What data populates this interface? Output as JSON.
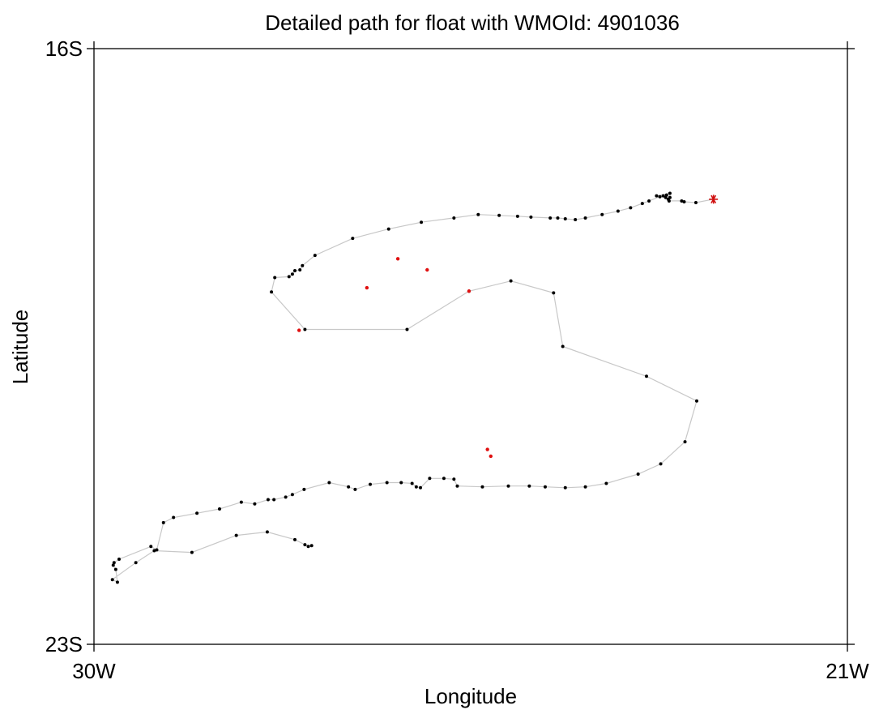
{
  "chart_data": {
    "type": "line",
    "title": "Detailed path for float with WMOId: 4901036",
    "xlabel": "Longitude",
    "ylabel": "Latitude",
    "xlim": [
      -30,
      -21
    ],
    "ylim": [
      -23,
      -16
    ],
    "x_ticks": [
      {
        "value": -30,
        "label": "30W"
      },
      {
        "value": -21,
        "label": "21W"
      }
    ],
    "y_ticks": [
      {
        "value": -16,
        "label": "16S"
      },
      {
        "value": -23,
        "label": "23S"
      }
    ],
    "grid": false,
    "legend": "none",
    "colors": {
      "path": "#c8c8c8",
      "point": "#000000",
      "highlight": "#e01010",
      "start_marker": "#d01010"
    },
    "start_point": {
      "lon": -22.6,
      "lat": -17.77,
      "marker": "asterisk"
    },
    "series": [
      {
        "points": [
          [
            -22.6,
            -17.77
          ],
          [
            -22.81,
            -17.81
          ],
          [
            -22.95,
            -17.8
          ],
          [
            -22.98,
            -17.79
          ],
          [
            -23.13,
            -17.79
          ],
          [
            -23.14,
            -17.77
          ],
          [
            -23.17,
            -17.75
          ],
          [
            -23.28,
            -17.73
          ],
          [
            -23.12,
            -17.7
          ],
          [
            -23.12,
            -17.75
          ],
          [
            -23.16,
            -17.72
          ],
          [
            -23.2,
            -17.73
          ],
          [
            -23.24,
            -17.74
          ],
          [
            -23.37,
            -17.79
          ],
          [
            -23.45,
            -17.82
          ],
          [
            -23.59,
            -17.87
          ],
          [
            -23.74,
            -17.91
          ],
          [
            -23.93,
            -17.95
          ],
          [
            -24.13,
            -17.99
          ],
          [
            -24.25,
            -18.01
          ],
          [
            -24.37,
            -18.0
          ],
          [
            -24.46,
            -17.99
          ],
          [
            -24.55,
            -17.99
          ],
          [
            -24.78,
            -17.98
          ],
          [
            -24.94,
            -17.97
          ],
          [
            -25.16,
            -17.96
          ],
          [
            -25.41,
            -17.95
          ],
          [
            -25.7,
            -17.99
          ],
          [
            -26.09,
            -18.04
          ],
          [
            -26.48,
            -18.12
          ],
          [
            -26.91,
            -18.23
          ],
          [
            -27.36,
            -18.43
          ],
          [
            -27.51,
            -18.55
          ],
          [
            -27.54,
            -18.6
          ],
          [
            -27.6,
            -18.61
          ],
          [
            -27.63,
            -18.65
          ],
          [
            -27.67,
            -18.68
          ],
          [
            -27.84,
            -18.69
          ],
          [
            -27.88,
            -18.86
          ],
          [
            -27.48,
            -19.3
          ],
          [
            -26.26,
            -19.3
          ],
          [
            -25.52,
            -18.85
          ],
          [
            -25.02,
            -18.73
          ],
          [
            -24.51,
            -18.87
          ],
          [
            -24.4,
            -19.5
          ],
          [
            -23.4,
            -19.85
          ],
          [
            -22.8,
            -20.14
          ],
          [
            -22.94,
            -20.62
          ],
          [
            -23.23,
            -20.88
          ],
          [
            -23.5,
            -21.0
          ],
          [
            -23.88,
            -21.11
          ],
          [
            -24.13,
            -21.15
          ],
          [
            -24.37,
            -21.16
          ],
          [
            -24.61,
            -21.15
          ],
          [
            -24.8,
            -21.14
          ],
          [
            -25.05,
            -21.14
          ],
          [
            -25.36,
            -21.15
          ],
          [
            -25.66,
            -21.14
          ],
          [
            -25.7,
            -21.06
          ],
          [
            -25.82,
            -21.05
          ],
          [
            -25.99,
            -21.05
          ],
          [
            -26.1,
            -21.16
          ],
          [
            -26.15,
            -21.15
          ],
          [
            -26.2,
            -21.11
          ],
          [
            -26.33,
            -21.1
          ],
          [
            -26.5,
            -21.1
          ],
          [
            -26.7,
            -21.12
          ],
          [
            -26.88,
            -21.18
          ],
          [
            -26.96,
            -21.15
          ],
          [
            -27.19,
            -21.1
          ],
          [
            -27.49,
            -21.18
          ],
          [
            -27.63,
            -21.24
          ],
          [
            -27.71,
            -21.27
          ],
          [
            -27.85,
            -21.3
          ],
          [
            -27.92,
            -21.3
          ],
          [
            -28.08,
            -21.35
          ],
          [
            -28.24,
            -21.33
          ],
          [
            -28.5,
            -21.41
          ],
          [
            -28.77,
            -21.46
          ],
          [
            -29.05,
            -21.51
          ],
          [
            -29.17,
            -21.57
          ],
          [
            -29.25,
            -21.89
          ],
          [
            -29.32,
            -21.85
          ],
          [
            -29.7,
            -22.0
          ],
          [
            -29.76,
            -22.04
          ],
          [
            -29.77,
            -22.07
          ],
          [
            -29.74,
            -22.12
          ],
          [
            -29.72,
            -22.27
          ],
          [
            -29.78,
            -22.24
          ],
          [
            -29.5,
            -22.04
          ],
          [
            -29.28,
            -21.9
          ],
          [
            -28.83,
            -21.92
          ],
          [
            -28.3,
            -21.72
          ],
          [
            -27.93,
            -21.68
          ],
          [
            -27.6,
            -21.77
          ],
          [
            -27.48,
            -21.83
          ],
          [
            -27.44,
            -21.85
          ],
          [
            -27.4,
            -21.84
          ]
        ]
      }
    ],
    "highlighted_points": [
      [
        -25.52,
        -18.85
      ],
      [
        -26.02,
        -18.6
      ],
      [
        -26.37,
        -18.47
      ],
      [
        -26.74,
        -18.81
      ],
      [
        -27.55,
        -19.31
      ],
      [
        -25.3,
        -20.71
      ],
      [
        -25.26,
        -20.79
      ]
    ]
  }
}
